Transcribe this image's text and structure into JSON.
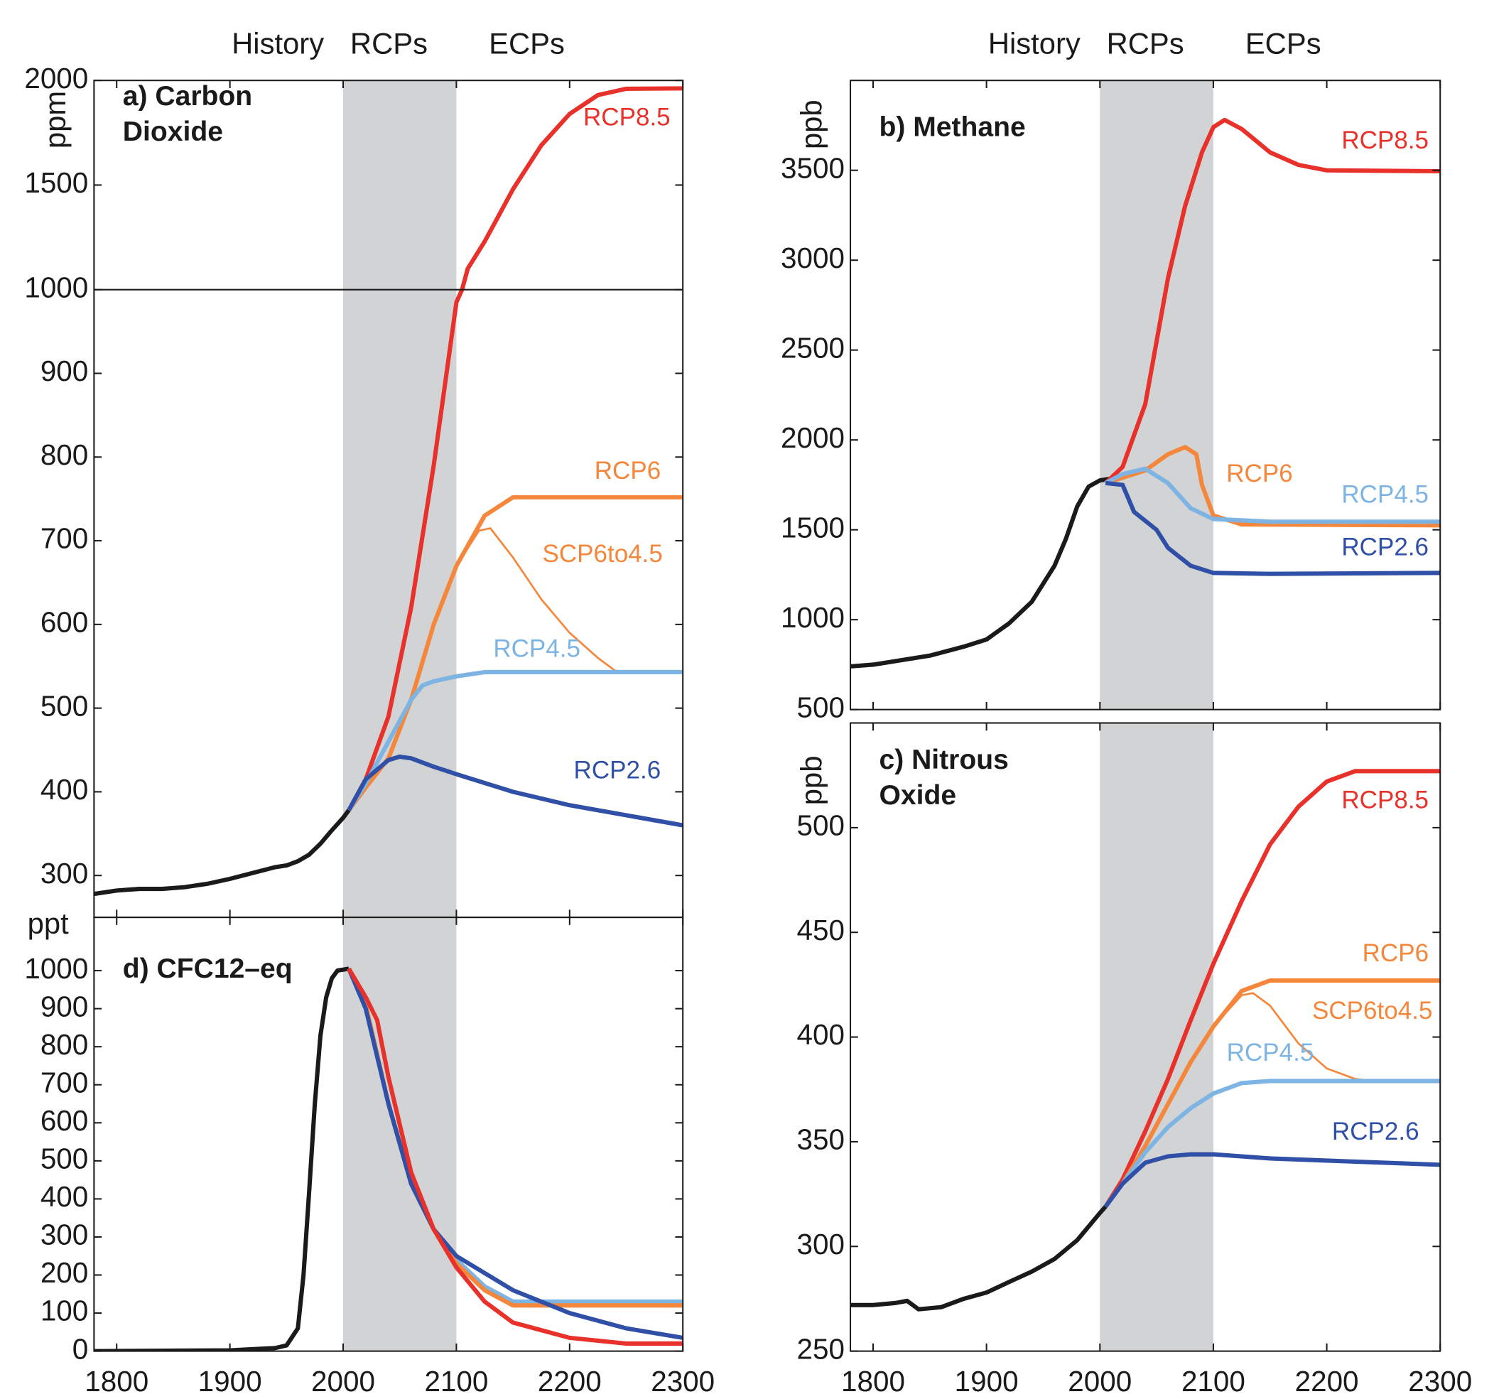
{
  "chart_data": [
    {
      "type": "line",
      "title": [
        "a) Carbon",
        "Dioxide"
      ],
      "ylabel": "ppm",
      "annotations": [
        "History",
        "RCPs",
        "ECPs"
      ],
      "xlim": [
        1780,
        2300
      ],
      "ylim": [
        250,
        2000
      ],
      "ybreak": 1000,
      "yticks": [
        300,
        400,
        500,
        600,
        700,
        800,
        900,
        1000,
        1500,
        2000
      ],
      "shade": [
        2000,
        2100
      ],
      "shade_color": "#d1d3d4",
      "linewidth": 4.5,
      "series": [
        {
          "color": "#1a1a1a",
          "x": [
            1780,
            1800,
            1820,
            1840,
            1860,
            1880,
            1900,
            1920,
            1940,
            1950,
            1960,
            1970,
            1980,
            1990,
            2000,
            2005
          ],
          "values": [
            278,
            282,
            284,
            284,
            286,
            290,
            296,
            303,
            310,
            312,
            317,
            325,
            338,
            354,
            369,
            378
          ]
        },
        {
          "name": "RCP8.5",
          "color": "#e8312a",
          "x": [
            2005,
            2020,
            2040,
            2060,
            2080,
            2100,
            2105,
            2110,
            2125,
            2150,
            2175,
            2200,
            2225,
            2250,
            2300
          ],
          "values": [
            378,
            415,
            490,
            620,
            790,
            985,
            1000,
            1100,
            1230,
            1480,
            1690,
            1840,
            1930,
            1960,
            1962
          ]
        },
        {
          "name": "RCP6",
          "color": "#f4873b",
          "x": [
            2005,
            2020,
            2040,
            2060,
            2080,
            2100,
            2125,
            2150,
            2300
          ],
          "values": [
            378,
            405,
            440,
            510,
            600,
            670,
            730,
            752,
            752
          ]
        },
        {
          "name": "SCP6to4.5",
          "color": "#f4873b",
          "linewidth": 2,
          "x": [
            2100,
            2120,
            2130,
            2150,
            2175,
            2200,
            2225,
            2240,
            2250
          ],
          "values": [
            670,
            712,
            715,
            680,
            630,
            590,
            560,
            545,
            543
          ]
        },
        {
          "name": "RCP4.5",
          "color": "#7db4e3",
          "x": [
            2005,
            2020,
            2040,
            2060,
            2070,
            2080,
            2100,
            2125,
            2150,
            2300
          ],
          "values": [
            378,
            410,
            460,
            510,
            527,
            532,
            538,
            543,
            543,
            543
          ]
        },
        {
          "name": "RCP2.6",
          "color": "#3050a8",
          "x": [
            2005,
            2020,
            2040,
            2050,
            2060,
            2080,
            2100,
            2150,
            2200,
            2250,
            2300
          ],
          "values": [
            378,
            415,
            438,
            442,
            440,
            430,
            421,
            400,
            384,
            372,
            360
          ]
        }
      ]
    },
    {
      "type": "line",
      "title": [
        "b) Methane"
      ],
      "ylabel": "ppb",
      "annotations": [
        "History",
        "RCPs",
        "ECPs"
      ],
      "xlim": [
        1780,
        2300
      ],
      "ylim": [
        500,
        4000
      ],
      "yticks": [
        500,
        1000,
        1500,
        2000,
        2500,
        3000,
        3500
      ],
      "shade": [
        2000,
        2100
      ],
      "shade_color": "#d1d3d4",
      "linewidth": 4.5,
      "series": [
        {
          "color": "#1a1a1a",
          "x": [
            1780,
            1800,
            1850,
            1880,
            1900,
            1920,
            1940,
            1960,
            1970,
            1980,
            1990,
            2000,
            2010
          ],
          "values": [
            740,
            750,
            800,
            850,
            890,
            980,
            1100,
            1300,
            1450,
            1630,
            1740,
            1775,
            1785
          ]
        },
        {
          "name": "RCP8.5",
          "color": "#e8312a",
          "x": [
            2005,
            2020,
            2040,
            2060,
            2075,
            2090,
            2100,
            2110,
            2125,
            2150,
            2175,
            2200,
            2300
          ],
          "values": [
            1760,
            1850,
            2200,
            2900,
            3300,
            3600,
            3740,
            3780,
            3730,
            3600,
            3530,
            3500,
            3495
          ]
        },
        {
          "name": "RCP6",
          "color": "#f4873b",
          "x": [
            2005,
            2020,
            2040,
            2060,
            2075,
            2085,
            2090,
            2100,
            2125,
            2300
          ],
          "values": [
            1760,
            1790,
            1830,
            1920,
            1960,
            1920,
            1750,
            1580,
            1530,
            1525
          ]
        },
        {
          "name": "RCP4.5",
          "color": "#7db4e3",
          "x": [
            2005,
            2020,
            2040,
            2060,
            2080,
            2100,
            2150,
            2300
          ],
          "values": [
            1760,
            1810,
            1840,
            1760,
            1620,
            1560,
            1545,
            1545
          ]
        },
        {
          "name": "RCP2.6",
          "color": "#3050a8",
          "x": [
            2005,
            2020,
            2030,
            2050,
            2060,
            2080,
            2100,
            2150,
            2300
          ],
          "values": [
            1760,
            1750,
            1600,
            1500,
            1400,
            1300,
            1260,
            1255,
            1260
          ]
        }
      ]
    },
    {
      "type": "line",
      "title": [
        "c) Nitrous",
        "Oxide"
      ],
      "ylabel": "ppb",
      "xlim": [
        1780,
        2300
      ],
      "ylim": [
        250,
        550
      ],
      "xticks": [
        1800,
        1900,
        2000,
        2100,
        2200,
        2300
      ],
      "yticks": [
        250,
        300,
        350,
        400,
        450,
        500
      ],
      "shade": [
        2000,
        2100
      ],
      "shade_color": "#d1d3d4",
      "linewidth": 4.5,
      "series": [
        {
          "color": "#1a1a1a",
          "x": [
            1780,
            1800,
            1820,
            1830,
            1840,
            1860,
            1880,
            1900,
            1920,
            1940,
            1960,
            1980,
            2000,
            2005
          ],
          "values": [
            272,
            272,
            273,
            274,
            270,
            271,
            275,
            278,
            283,
            288,
            294,
            303,
            316,
            319
          ]
        },
        {
          "name": "RCP8.5",
          "color": "#e8312a",
          "x": [
            2005,
            2020,
            2040,
            2060,
            2080,
            2100,
            2125,
            2150,
            2175,
            2200,
            2225,
            2300
          ],
          "values": [
            319,
            332,
            355,
            380,
            408,
            435,
            465,
            492,
            510,
            522,
            527,
            527
          ]
        },
        {
          "name": "RCP6",
          "color": "#f4873b",
          "x": [
            2005,
            2020,
            2040,
            2060,
            2080,
            2100,
            2125,
            2150,
            2300
          ],
          "values": [
            319,
            330,
            348,
            368,
            388,
            405,
            422,
            427,
            427
          ]
        },
        {
          "name": "SCP6to4.5",
          "color": "#f4873b",
          "linewidth": 2,
          "x": [
            2100,
            2125,
            2135,
            2150,
            2175,
            2200,
            2225,
            2240
          ],
          "values": [
            405,
            420,
            421,
            415,
            397,
            385,
            380,
            379
          ]
        },
        {
          "name": "RCP4.5",
          "color": "#7db4e3",
          "x": [
            2005,
            2020,
            2040,
            2060,
            2080,
            2100,
            2125,
            2150,
            2300
          ],
          "values": [
            319,
            330,
            345,
            357,
            366,
            373,
            378,
            379,
            379
          ]
        },
        {
          "name": "RCP2.6",
          "color": "#3050a8",
          "x": [
            2005,
            2020,
            2040,
            2060,
            2080,
            2100,
            2150,
            2200,
            2300
          ],
          "values": [
            319,
            330,
            340,
            343,
            344,
            344,
            342,
            341,
            339
          ]
        }
      ]
    },
    {
      "type": "line",
      "title": [
        "d) CFC12–eq"
      ],
      "ylabel": "ppt",
      "xlim": [
        1780,
        2300
      ],
      "ylim": [
        0,
        1140
      ],
      "xticks": [
        1800,
        1900,
        2000,
        2100,
        2200,
        2300
      ],
      "yticks": [
        0,
        100,
        200,
        300,
        400,
        500,
        600,
        700,
        800,
        900,
        1000
      ],
      "shade": [
        2000,
        2100
      ],
      "shade_color": "#d1d3d4",
      "linewidth": 4.5,
      "series": [
        {
          "color": "#1a1a1a",
          "x": [
            1780,
            1900,
            1940,
            1950,
            1960,
            1965,
            1970,
            1975,
            1980,
            1985,
            1990,
            1995,
            2005
          ],
          "values": [
            0,
            2,
            8,
            15,
            60,
            200,
            420,
            650,
            830,
            930,
            980,
            1000,
            1005
          ]
        },
        {
          "color": "#7db4e3",
          "x": [
            2005,
            2020,
            2040,
            2060,
            2080,
            2100,
            2125,
            2150,
            2300
          ],
          "values": [
            1005,
            900,
            650,
            440,
            320,
            240,
            170,
            130,
            130
          ]
        },
        {
          "color": "#f4873b",
          "x": [
            2005,
            2020,
            2040,
            2060,
            2080,
            2100,
            2125,
            2150,
            2300
          ],
          "values": [
            1005,
            910,
            650,
            440,
            320,
            230,
            160,
            120,
            120
          ]
        },
        {
          "color": "#3050a8",
          "x": [
            2005,
            2020,
            2040,
            2060,
            2080,
            2100,
            2150,
            2200,
            2250,
            2300
          ],
          "values": [
            1005,
            900,
            650,
            440,
            320,
            250,
            160,
            100,
            60,
            35
          ]
        },
        {
          "color": "#e8312a",
          "x": [
            2005,
            2020,
            2030,
            2040,
            2060,
            2080,
            2100,
            2125,
            2150,
            2200,
            2250,
            2300
          ],
          "values": [
            1005,
            930,
            870,
            720,
            470,
            320,
            220,
            130,
            75,
            35,
            20,
            20
          ]
        }
      ]
    }
  ]
}
